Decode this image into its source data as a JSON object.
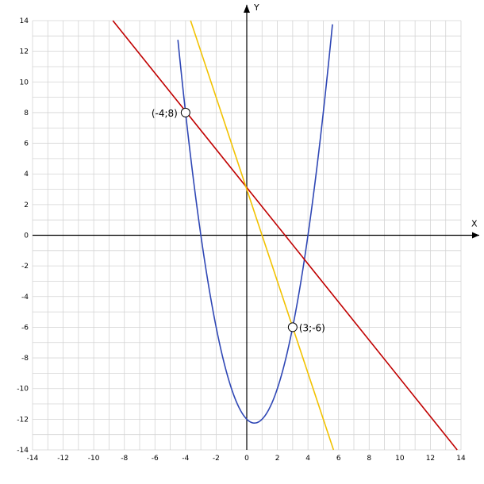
{
  "chart_data": {
    "type": "line",
    "title": "",
    "xlabel": "X",
    "ylabel": "Y",
    "xlim": [
      -14,
      14
    ],
    "ylim": [
      -14,
      14
    ],
    "grid": true,
    "x_ticks": [
      -14,
      -12,
      -10,
      -8,
      -6,
      -4,
      -2,
      0,
      2,
      4,
      6,
      8,
      10,
      12,
      14
    ],
    "y_ticks": [
      -14,
      -12,
      -10,
      -8,
      -6,
      -4,
      -2,
      0,
      2,
      4,
      6,
      8,
      10,
      12,
      14
    ],
    "series": [
      {
        "kind": "parabola",
        "equation_coeffs": {
          "a": 1,
          "b": -1,
          "c": -12
        },
        "color": "#2F47B5",
        "x_range": [
          -4.5,
          5.6
        ]
      },
      {
        "kind": "line",
        "points": [
          [
            -8.75,
            14
          ],
          [
            13.75,
            -14
          ]
        ],
        "color": "#C00000"
      },
      {
        "kind": "line",
        "points": [
          [
            -3.67,
            14
          ],
          [
            5.67,
            -14
          ]
        ],
        "color": "#F2C200"
      }
    ],
    "annotations": [
      {
        "x": -4,
        "y": 8,
        "label": "(-4;8)",
        "label_side": "left"
      },
      {
        "x": 3,
        "y": -6,
        "label": "(3;-6)",
        "label_side": "right"
      }
    ]
  }
}
